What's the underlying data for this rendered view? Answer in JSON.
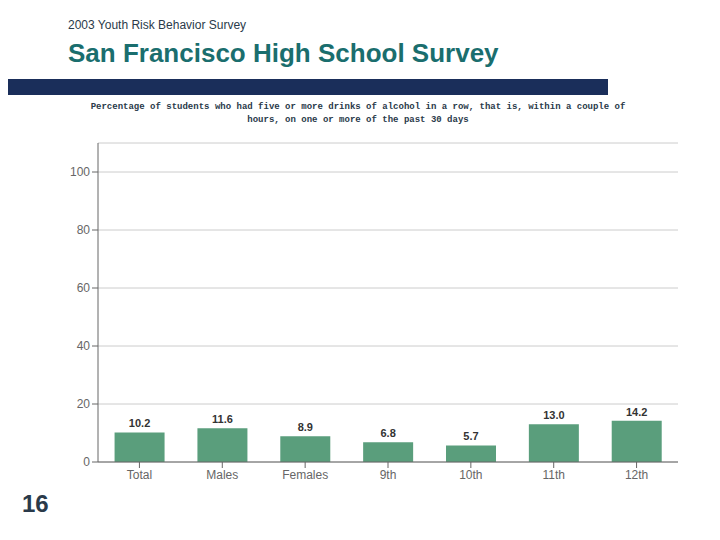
{
  "chart_data": {
    "type": "bar",
    "title": "San Francisco High School Survey",
    "subtitle": "2003 Youth Risk Behavior Survey",
    "annotations": [
      "Percentage of students who had five or more drinks of alcohol in a row, that is, within a couple of",
      "hours, on one or more of the past 30 days",
      "16"
    ],
    "categories": [
      "Total",
      "Males",
      "Females",
      "9th",
      "10th",
      "11th",
      "12th"
    ],
    "values": [
      10.2,
      11.6,
      8.9,
      6.8,
      5.7,
      13.0,
      14.2
    ],
    "value_labels": [
      "10.2",
      "11.6",
      "8.9",
      "6.8",
      "5.7",
      "13.0",
      "14.2"
    ],
    "data_labels": true,
    "color": "#5a9e7c",
    "ylim": [
      0,
      110
    ],
    "yticks": [
      0,
      20,
      40,
      60,
      80,
      100
    ],
    "grid": true
  }
}
